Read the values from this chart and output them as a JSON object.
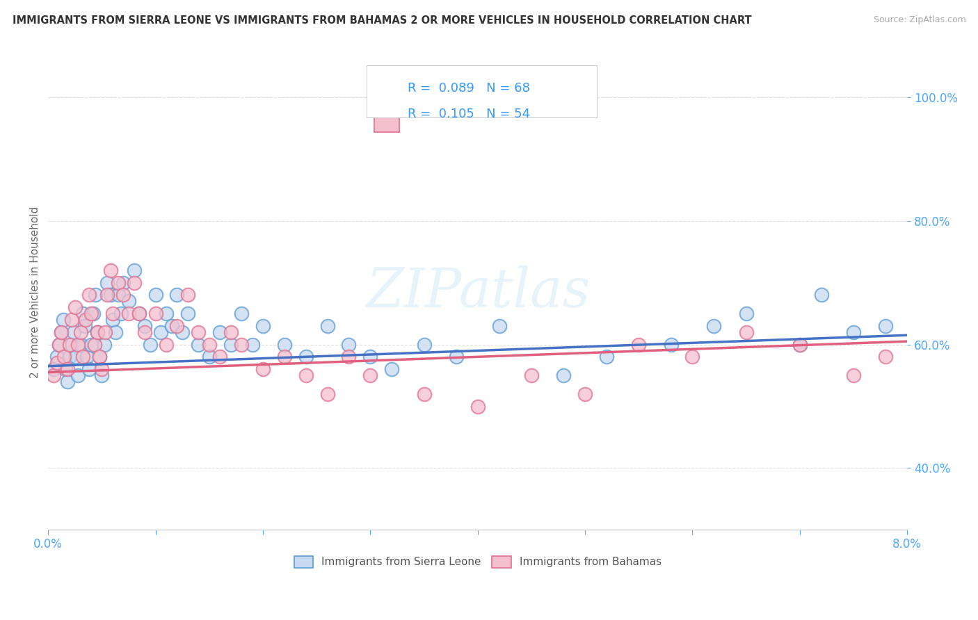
{
  "title": "IMMIGRANTS FROM SIERRA LEONE VS IMMIGRANTS FROM BAHAMAS 2 OR MORE VEHICLES IN HOUSEHOLD CORRELATION CHART",
  "source": "Source: ZipAtlas.com",
  "ylabel": "2 or more Vehicles in Household",
  "series1_label": "Immigrants from Sierra Leone",
  "series2_label": "Immigrants from Bahamas",
  "series1_face_color": "#c6d9f0",
  "series2_face_color": "#f5c0ce",
  "series1_edge_color": "#5b9bd5",
  "series2_edge_color": "#e07090",
  "series1_line_color": "#4472c4",
  "series2_line_color": "#e06080",
  "R1": 0.089,
  "N1": 68,
  "R2": 0.105,
  "N2": 54,
  "xmin": 0.0,
  "xmax": 8.0,
  "ymin": 30.0,
  "ymax": 107.0,
  "yticks": [
    40.0,
    60.0,
    80.0,
    100.0
  ],
  "legend_text_color": "#3399ff",
  "watermark": "ZIPatlas",
  "series1_x": [
    0.05,
    0.08,
    0.1,
    0.12,
    0.14,
    0.16,
    0.18,
    0.2,
    0.22,
    0.24,
    0.26,
    0.28,
    0.3,
    0.32,
    0.34,
    0.36,
    0.38,
    0.4,
    0.42,
    0.44,
    0.46,
    0.48,
    0.5,
    0.52,
    0.55,
    0.58,
    0.6,
    0.63,
    0.65,
    0.68,
    0.7,
    0.75,
    0.8,
    0.85,
    0.9,
    0.95,
    1.0,
    1.05,
    1.1,
    1.15,
    1.2,
    1.25,
    1.3,
    1.4,
    1.5,
    1.6,
    1.7,
    1.8,
    1.9,
    2.0,
    2.2,
    2.4,
    2.6,
    2.8,
    3.0,
    3.2,
    3.5,
    3.8,
    4.2,
    4.8,
    5.2,
    5.8,
    6.2,
    6.5,
    7.0,
    7.2,
    7.5,
    7.8
  ],
  "series1_y": [
    56,
    58,
    60,
    62,
    64,
    56,
    54,
    58,
    60,
    62,
    58,
    55,
    60,
    65,
    63,
    58,
    56,
    60,
    65,
    68,
    62,
    58,
    55,
    60,
    70,
    68,
    64,
    62,
    68,
    65,
    70,
    67,
    72,
    65,
    63,
    60,
    68,
    62,
    65,
    63,
    68,
    62,
    65,
    60,
    58,
    62,
    60,
    65,
    60,
    63,
    60,
    58,
    63,
    60,
    58,
    56,
    60,
    58,
    63,
    55,
    58,
    60,
    63,
    65,
    60,
    68,
    62,
    63
  ],
  "series2_x": [
    0.05,
    0.08,
    0.1,
    0.12,
    0.15,
    0.18,
    0.2,
    0.22,
    0.25,
    0.28,
    0.3,
    0.32,
    0.35,
    0.38,
    0.4,
    0.43,
    0.46,
    0.48,
    0.5,
    0.53,
    0.55,
    0.58,
    0.6,
    0.65,
    0.7,
    0.75,
    0.8,
    0.85,
    0.9,
    1.0,
    1.1,
    1.2,
    1.3,
    1.4,
    1.5,
    1.6,
    1.7,
    1.8,
    2.0,
    2.2,
    2.4,
    2.6,
    2.8,
    3.0,
    3.5,
    4.0,
    4.5,
    5.0,
    5.5,
    6.0,
    6.5,
    7.0,
    7.5,
    7.8
  ],
  "series2_y": [
    55,
    57,
    60,
    62,
    58,
    56,
    60,
    64,
    66,
    60,
    62,
    58,
    64,
    68,
    65,
    60,
    62,
    58,
    56,
    62,
    68,
    72,
    65,
    70,
    68,
    65,
    70,
    65,
    62,
    65,
    60,
    63,
    68,
    62,
    60,
    58,
    62,
    60,
    56,
    58,
    55,
    52,
    58,
    55,
    52,
    50,
    55,
    52,
    60,
    58,
    62,
    60,
    55,
    58
  ]
}
